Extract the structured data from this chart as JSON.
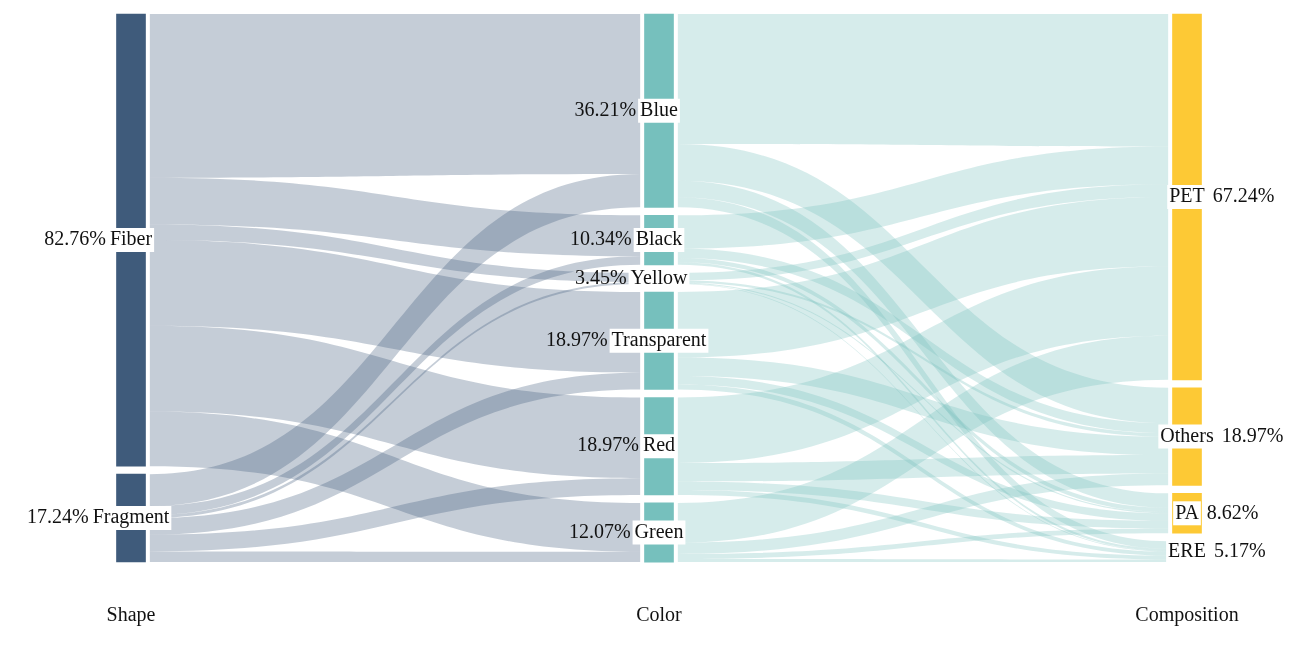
{
  "chart_data": {
    "type": "other",
    "categories": [
      "Shape",
      "Color",
      "Composition"
    ],
    "colors": [
      "#3f5b7b",
      "#3f5b7b",
      "#76c0bd",
      "#76c0bd",
      "#76c0bd",
      "#76c0bd",
      "#76c0bd",
      "#76c0bd",
      "#fdc935",
      "#fdc935",
      "#fdc935",
      "#fdc935"
    ],
    "series": [
      {
        "name": "Fiber",
        "values": [
          82.76,
          null,
          null
        ],
        "value_labels": [
          "82.76%",
          null,
          null
        ]
      },
      {
        "name": "Fragment",
        "values": [
          17.24,
          null,
          null
        ],
        "value_labels": [
          "17.24%",
          null,
          null
        ]
      },
      {
        "name": "Blue",
        "values": [
          null,
          36.21,
          null
        ],
        "value_labels": [
          null,
          "36.21%",
          null
        ]
      },
      {
        "name": "Black",
        "values": [
          null,
          10.34,
          null
        ],
        "value_labels": [
          null,
          "10.34%",
          null
        ]
      },
      {
        "name": "Yellow",
        "values": [
          null,
          3.45,
          null
        ],
        "value_labels": [
          null,
          "3.45%",
          null
        ]
      },
      {
        "name": "Transparent",
        "values": [
          null,
          18.97,
          null
        ],
        "value_labels": [
          null,
          "18.97%",
          null
        ]
      },
      {
        "name": "Red",
        "values": [
          null,
          18.97,
          null
        ],
        "value_labels": [
          null,
          "18.97%",
          null
        ]
      },
      {
        "name": "Green",
        "values": [
          null,
          12.07,
          null
        ],
        "value_labels": [
          null,
          "12.07%",
          null
        ]
      },
      {
        "name": "PET",
        "values": [
          null,
          null,
          67.24
        ],
        "value_labels": [
          null,
          null,
          "67.24%"
        ]
      },
      {
        "name": "Others",
        "values": [
          null,
          null,
          18.97
        ],
        "value_labels": [
          null,
          null,
          "18.97%"
        ]
      },
      {
        "name": "PA",
        "values": [
          null,
          null,
          8.62
        ],
        "value_labels": [
          null,
          null,
          "8.62%"
        ]
      },
      {
        "name": "ERE",
        "values": [
          null,
          null,
          5.17
        ],
        "value_labels": [
          null,
          null,
          "5.17%"
        ]
      }
    ]
  }
}
